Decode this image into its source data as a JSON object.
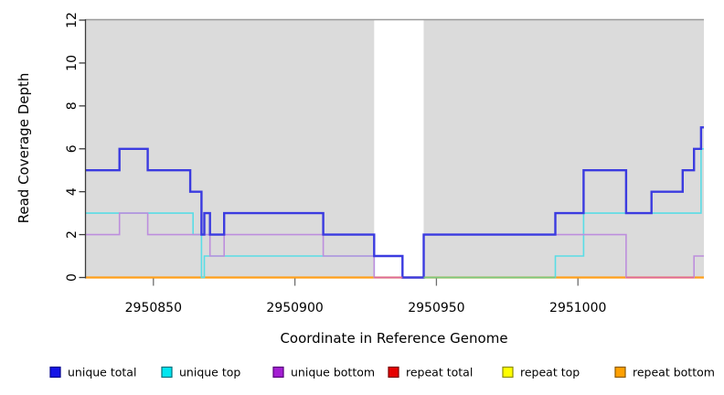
{
  "axes": {
    "x_label": "Coordinate in Reference Genome",
    "y_label": "Read Coverage Depth",
    "x_tick_labels": [
      "2950850",
      "2950900",
      "2950950",
      "2951000"
    ],
    "y_tick_labels": [
      "0",
      "2",
      "4",
      "6",
      "8",
      "10",
      "12"
    ]
  },
  "legend": {
    "items": [
      {
        "label": "unique total",
        "key": "unique_total",
        "swatch_color": "#1414e6",
        "swatch_border": "#00008c"
      },
      {
        "label": "unique top",
        "key": "unique_top",
        "swatch_color": "#00e6f0",
        "swatch_border": "#00707c"
      },
      {
        "label": "unique bottom",
        "key": "unique_bottom",
        "swatch_color": "#a31ed2",
        "swatch_border": "#55007a"
      },
      {
        "label": "repeat total",
        "key": "repeat_total",
        "swatch_color": "#e60000",
        "swatch_border": "#7a0000"
      },
      {
        "label": "repeat top",
        "key": "repeat_top",
        "swatch_color": "#ffff00",
        "swatch_border": "#8c8c00"
      },
      {
        "label": "repeat bottom",
        "key": "repeat_bottom",
        "swatch_color": "#ffa000",
        "swatch_border": "#8c5a00"
      }
    ]
  },
  "chart_data": {
    "type": "step-line",
    "title": "",
    "xlabel": "Coordinate in Reference Genome",
    "ylabel": "Read Coverage Depth",
    "x_range": [
      2950826,
      2951044.5
    ],
    "y_range": [
      0,
      12
    ],
    "x_ticks": [
      2950850,
      2950900,
      2950950,
      2951000
    ],
    "y_ticks": [
      0,
      2,
      4,
      6,
      8,
      10,
      12
    ],
    "grid": false,
    "legend_position": "bottom",
    "plot_bg": "#dbdbdb",
    "frame_color": "#9a9a9a",
    "y_axis_color": "#3c3c3c",
    "x_tick_color": "#6e6e6e",
    "masked_region": {
      "from": 2950928,
      "to": 2950945.5,
      "color": "#ffffff"
    },
    "series": [
      {
        "key": "unique_total",
        "name": "unique total",
        "color": "#3b3be0",
        "width": 2.4,
        "steps": [
          [
            2950826,
            5
          ],
          [
            2950838,
            6
          ],
          [
            2950848,
            5
          ],
          [
            2950863,
            4
          ],
          [
            2950867,
            2
          ],
          [
            2950868,
            3
          ],
          [
            2950870,
            2
          ],
          [
            2950875,
            3
          ],
          [
            2950910,
            2
          ],
          [
            2950928,
            1
          ],
          [
            2950938,
            0
          ],
          [
            2950945.5,
            2
          ],
          [
            2950992,
            3
          ],
          [
            2951002,
            5
          ],
          [
            2951017,
            3
          ],
          [
            2951026,
            4
          ],
          [
            2951037,
            5
          ],
          [
            2951041,
            6
          ],
          [
            2951043.5,
            7
          ]
        ]
      },
      {
        "key": "unique_top",
        "name": "unique top",
        "color": "#59dde6",
        "width": 1.6,
        "steps": [
          [
            2950826,
            3
          ],
          [
            2950864,
            2
          ],
          [
            2950867,
            0
          ],
          [
            2950868,
            1
          ],
          [
            2950928,
            0
          ],
          [
            2950992,
            1
          ],
          [
            2951002,
            3
          ],
          [
            2951043.5,
            6
          ]
        ]
      },
      {
        "key": "unique_bottom",
        "name": "unique bottom",
        "color": "#bd8edd",
        "width": 1.6,
        "steps": [
          [
            2950826,
            2
          ],
          [
            2950838,
            3
          ],
          [
            2950848,
            2
          ],
          [
            2950870,
            1
          ],
          [
            2950875,
            2
          ],
          [
            2950910,
            1
          ],
          [
            2950928,
            0
          ],
          [
            2950945.5,
            2
          ],
          [
            2951017,
            0
          ],
          [
            2951041,
            1
          ]
        ]
      },
      {
        "key": "repeat_total",
        "name": "repeat total",
        "color": "#dd2222",
        "width": 1.5,
        "steps": [
          [
            2950826,
            0
          ]
        ]
      },
      {
        "key": "repeat_top",
        "name": "repeat top",
        "color": "#f0e442",
        "width": 1.5,
        "steps": [
          [
            2950826,
            0
          ]
        ]
      },
      {
        "key": "repeat_bottom",
        "name": "repeat bottom",
        "color": "#ff9f1a",
        "width": 2.2,
        "steps": [
          [
            2950826,
            0
          ]
        ]
      }
    ],
    "draw_order": [
      "repeat_total",
      "repeat_top",
      "repeat_bottom",
      "unique_top",
      "unique_bottom",
      "unique_total"
    ],
    "overlap_tints": [
      {
        "from": 2950928,
        "to": 2950938,
        "y": 0,
        "color": "#e06898"
      },
      {
        "from": 2950945.5,
        "to": 2950992,
        "y": 0,
        "color": "#7bc87c"
      },
      {
        "from": 2951017,
        "to": 2951041,
        "y": 0,
        "color": "#e06898"
      }
    ]
  }
}
